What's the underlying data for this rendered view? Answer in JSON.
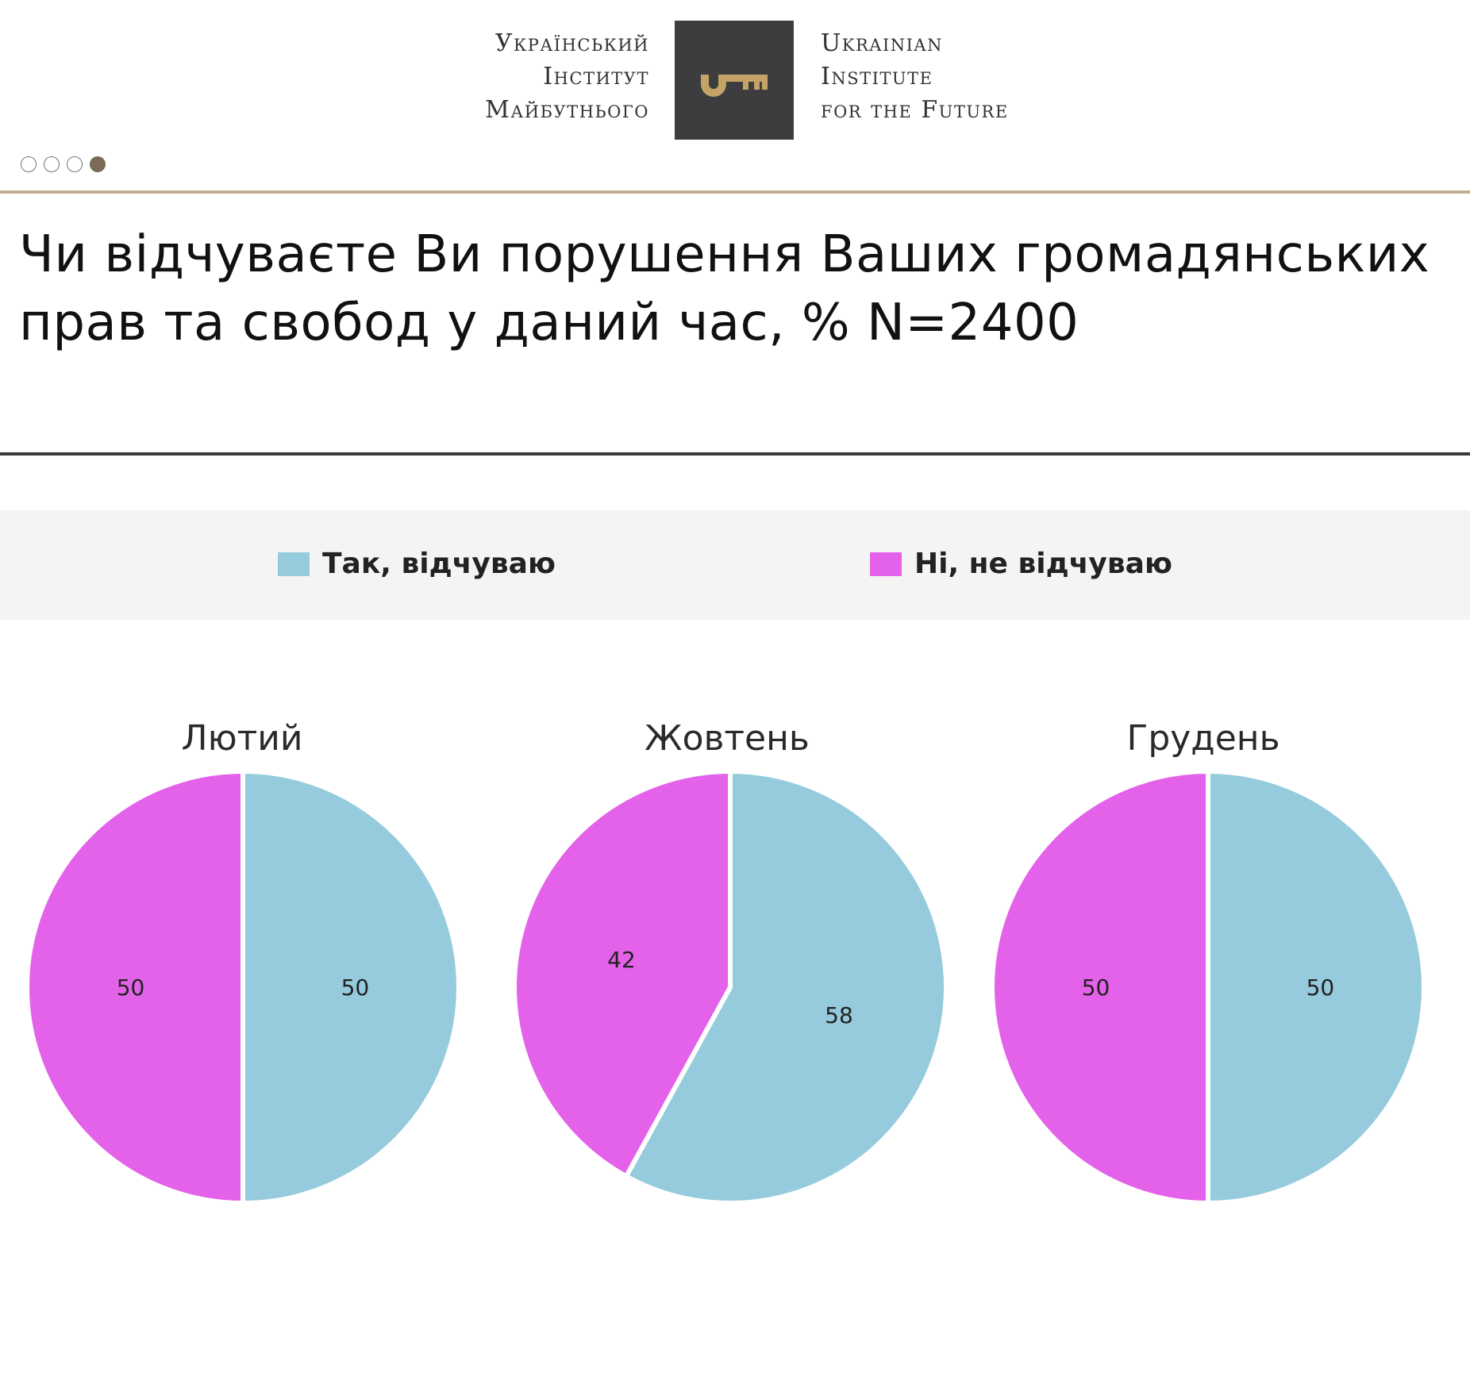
{
  "header": {
    "logo_left_lines": [
      "Український",
      "Інститут",
      "Майбутнього"
    ],
    "logo_right_lines": [
      "Ukrainian",
      "Institute",
      "for the Future"
    ],
    "logo_icon": "key-icon",
    "pager_dots": 4,
    "pager_active": 4
  },
  "title": "Чи відчуваєте Ви порушення Ваших громадянських прав та свобод у даний час, % N=2400",
  "legend": {
    "yes": {
      "label": "Так, відчуваю",
      "color": "#95cbdc"
    },
    "no": {
      "label": "Ні, не відчуваю",
      "color": "#e462e9"
    }
  },
  "chart_data": [
    {
      "type": "pie",
      "title": "Лютий",
      "series": [
        {
          "name": "Так, відчуваю",
          "value": 50,
          "color": "#95cbdc"
        },
        {
          "name": "Ні, не відчуваю",
          "value": 50,
          "color": "#e462e9"
        }
      ]
    },
    {
      "type": "pie",
      "title": "Жовтень",
      "series": [
        {
          "name": "Так, відчуваю",
          "value": 58,
          "color": "#95cbdc"
        },
        {
          "name": "Ні, не відчуваю",
          "value": 42,
          "color": "#e462e9"
        }
      ]
    },
    {
      "type": "pie",
      "title": "Грудень",
      "series": [
        {
          "name": "Так, відчуваю",
          "value": 50,
          "color": "#95cbdc"
        },
        {
          "name": "Ні, не відчуваю",
          "value": 50,
          "color": "#e462e9"
        }
      ]
    }
  ]
}
